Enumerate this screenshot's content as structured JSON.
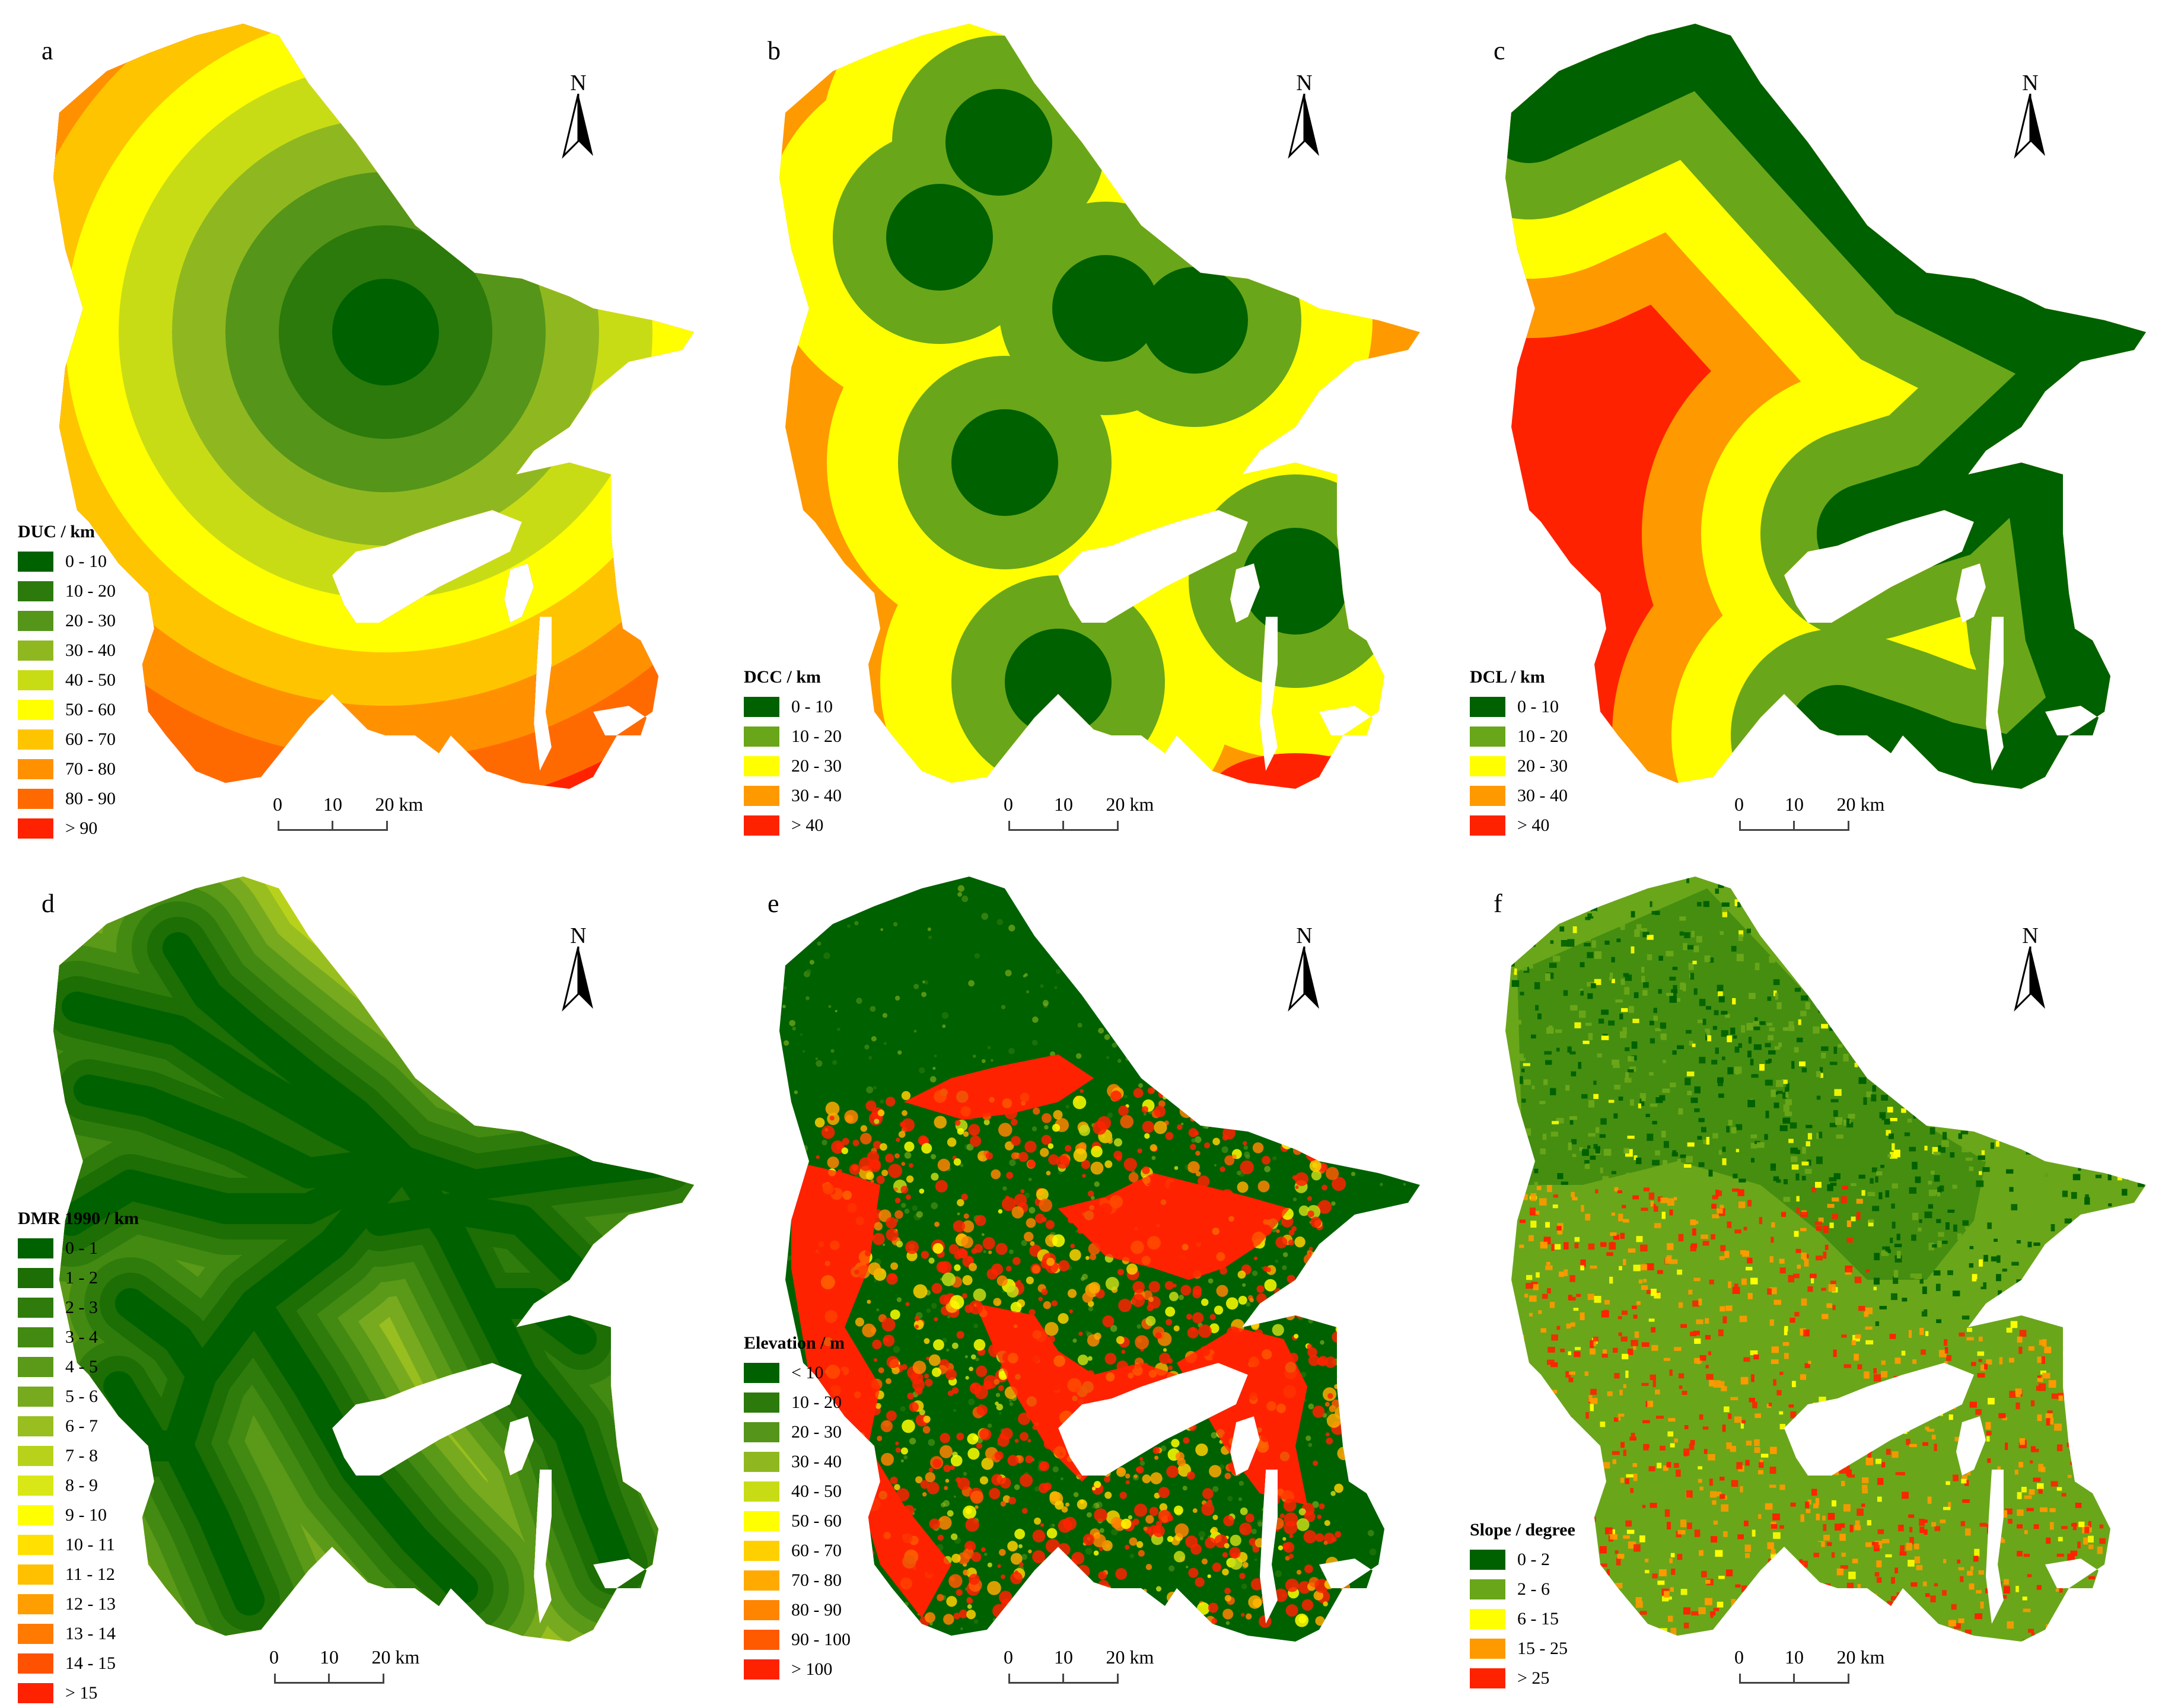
{
  "north_label": "N",
  "scale": {
    "labels": [
      "0",
      "10",
      "20 km"
    ]
  },
  "palettes": {
    "ramp10": [
      "#006100",
      "#2b7a0b",
      "#55951a",
      "#8fb820",
      "#c8dc16",
      "#ffff00",
      "#ffc400",
      "#ff9100",
      "#ff6a00",
      "#ff2200"
    ],
    "ramp5": [
      "#006100",
      "#6aa61a",
      "#ffff00",
      "#ff9900",
      "#ff2200"
    ],
    "ramp16": [
      "#006100",
      "#1c6e05",
      "#2f7c0c",
      "#438a12",
      "#5b9918",
      "#77aa1e",
      "#98be1f",
      "#b8d21c",
      "#d9e716",
      "#ffff00",
      "#ffe000",
      "#ffc000",
      "#ff9e00",
      "#ff7a00",
      "#ff5200",
      "#ff2200"
    ]
  },
  "panels": [
    {
      "letter": "a",
      "pattern": "rings",
      "legend": {
        "title": "DUC / km",
        "items": [
          {
            "label": "0 - 10",
            "color": "#006100"
          },
          {
            "label": "10 - 20",
            "color": "#2b7a0b"
          },
          {
            "label": "20 - 30",
            "color": "#55951a"
          },
          {
            "label": "30 - 40",
            "color": "#8fb820"
          },
          {
            "label": "40 - 50",
            "color": "#c8dc16"
          },
          {
            "label": "50 - 60",
            "color": "#ffff00"
          },
          {
            "label": "60 - 70",
            "color": "#ffc400"
          },
          {
            "label": "70 - 80",
            "color": "#ff9100"
          },
          {
            "label": "80 - 90",
            "color": "#ff6a00"
          },
          {
            "label": "> 90",
            "color": "#ff2200"
          }
        ]
      }
    },
    {
      "letter": "b",
      "pattern": "blobs",
      "legend": {
        "title": "DCC / km",
        "items": [
          {
            "label": "0 - 10",
            "color": "#006100"
          },
          {
            "label": "10 - 20",
            "color": "#6aa61a"
          },
          {
            "label": "20 - 30",
            "color": "#ffff00"
          },
          {
            "label": "30 - 40",
            "color": "#ff9900"
          },
          {
            "label": "> 40",
            "color": "#ff2200"
          }
        ]
      }
    },
    {
      "letter": "c",
      "pattern": "coast",
      "legend": {
        "title": "DCL / km",
        "items": [
          {
            "label": "0 - 10",
            "color": "#006100"
          },
          {
            "label": "10 - 20",
            "color": "#6aa61a"
          },
          {
            "label": "20 - 30",
            "color": "#ffff00"
          },
          {
            "label": "30 - 40",
            "color": "#ff9900"
          },
          {
            "label": "> 40",
            "color": "#ff2200"
          }
        ]
      }
    },
    {
      "letter": "d",
      "pattern": "rivers",
      "legend": {
        "title": "DMR 1990 / km",
        "items": [
          {
            "label": "0 - 1",
            "color": "#006100"
          },
          {
            "label": "1 - 2",
            "color": "#1c6e05"
          },
          {
            "label": "2 - 3",
            "color": "#2f7c0c"
          },
          {
            "label": "3 - 4",
            "color": "#438a12"
          },
          {
            "label": "4 - 5",
            "color": "#5b9918"
          },
          {
            "label": "5 - 6",
            "color": "#77aa1e"
          },
          {
            "label": "6 - 7",
            "color": "#98be1f"
          },
          {
            "label": "7 - 8",
            "color": "#b8d21c"
          },
          {
            "label": "8 - 9",
            "color": "#d9e716"
          },
          {
            "label": "9 - 10",
            "color": "#ffff00"
          },
          {
            "label": "10 - 11",
            "color": "#ffe000"
          },
          {
            "label": "11 - 12",
            "color": "#ffc000"
          },
          {
            "label": "12 - 13",
            "color": "#ff9e00"
          },
          {
            "label": "13 - 14",
            "color": "#ff7a00"
          },
          {
            "label": "14 - 15",
            "color": "#ff5200"
          },
          {
            "label": "> 15",
            "color": "#ff2200"
          }
        ]
      }
    },
    {
      "letter": "e",
      "pattern": "elevation",
      "legend": {
        "title": "Elevation / m",
        "items": [
          {
            "label": "< 10",
            "color": "#006100"
          },
          {
            "label": "10 - 20",
            "color": "#2b7a0b"
          },
          {
            "label": "20 - 30",
            "color": "#55951a"
          },
          {
            "label": "30 - 40",
            "color": "#8fb820"
          },
          {
            "label": "40 - 50",
            "color": "#c8dc16"
          },
          {
            "label": "50 - 60",
            "color": "#ffff00"
          },
          {
            "label": "60 - 70",
            "color": "#ffd000"
          },
          {
            "label": "70 - 80",
            "color": "#ffaa00"
          },
          {
            "label": "80 - 90",
            "color": "#ff8400"
          },
          {
            "label": "90 - 100",
            "color": "#ff5a00"
          },
          {
            "label": "> 100",
            "color": "#ff2200"
          }
        ]
      }
    },
    {
      "letter": "f",
      "pattern": "slope",
      "legend": {
        "title": "Slope / degree",
        "items": [
          {
            "label": "0 - 2",
            "color": "#006100"
          },
          {
            "label": "2 - 6",
            "color": "#6aa61a"
          },
          {
            "label": "6 - 15",
            "color": "#ffff00"
          },
          {
            "label": "15 - 25",
            "color": "#ff9900"
          },
          {
            "label": "> 25",
            "color": "#ff2200"
          }
        ]
      }
    }
  ]
}
